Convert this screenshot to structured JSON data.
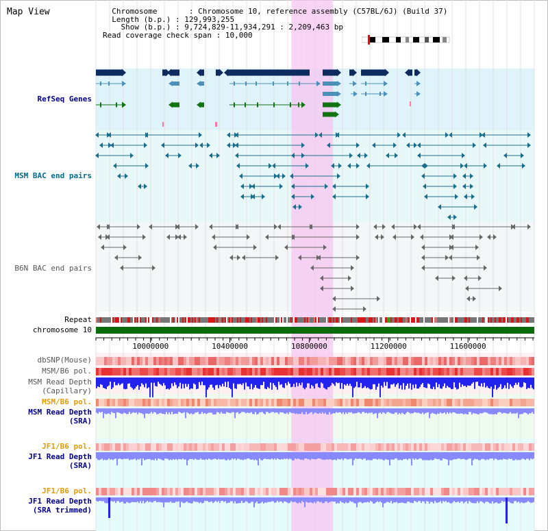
{
  "view_title": "Map View",
  "info": {
    "rows": [
      {
        "label": "Chromosome",
        "value": "Chromosome 10, reference assembly (C57BL/6J) (Build 37)"
      },
      {
        "label": "Length (b.p.)",
        "value": "129,993,255"
      },
      {
        "label": "Show (b.p.)",
        "value": "9,724,829-11,934,291 : 2,209,463 bp"
      },
      {
        "label": "Read coverage check span",
        "value": "10,000"
      }
    ]
  },
  "tracks": {
    "refseq": {
      "label": "RefSeq Genes",
      "color": "#00008b"
    },
    "msm_bac": {
      "label": "MSM BAC end pairs",
      "color": "#006b8b"
    },
    "b6n_bac": {
      "label": "B6N BAC end pairs",
      "color": "#555555"
    },
    "repeat": {
      "label": "Repeat"
    },
    "chrom": {
      "label": "chromosome 10"
    },
    "dbsnp": {
      "label": "dbSNP(Mouse)"
    },
    "msm_b6_pol": {
      "label": "MSM/B6 pol."
    },
    "msm_depth_cap": {
      "label": "MSM Read Depth",
      "sub": "(Capillary)"
    },
    "msm_b6_pol2": {
      "label": "MSM/B6 pol."
    },
    "msm_depth_sra": {
      "label": "MSM Read Depth",
      "sub": "(SRA)"
    },
    "jf1_b6_pol": {
      "label": "JF1/B6 pol."
    },
    "jf1_depth_sra": {
      "label": "JF1 Read Depth",
      "sub": "(SRA)"
    },
    "jf1_b6_pol2": {
      "label": "JF1/B6 pol."
    },
    "jf1_depth_trim": {
      "label": "JF1 Read Depth",
      "sub": "(SRA trimmed)"
    }
  },
  "axis": {
    "ticks": [
      "10000000",
      "10400000",
      "10800000",
      "11200000",
      "11600000"
    ],
    "tick_values": [
      10000000,
      10400000,
      10800000,
      11200000,
      11600000
    ],
    "range": [
      9724829,
      11934291
    ]
  },
  "highlight": {
    "start": 10710000,
    "end": 10920000
  },
  "colors": {
    "gene_dark": "#0d2b5e",
    "gene_mid": "#4a90b8",
    "gene_green": "#127312",
    "msm_pair": "#1a6e8c",
    "b6n_pair": "#666666",
    "depth_blue": "#2222ee",
    "depth_light": "#8888ff",
    "highlight": "#f7c6f0",
    "label_orange": "#e89a00",
    "label_blue": "#00008b"
  }
}
